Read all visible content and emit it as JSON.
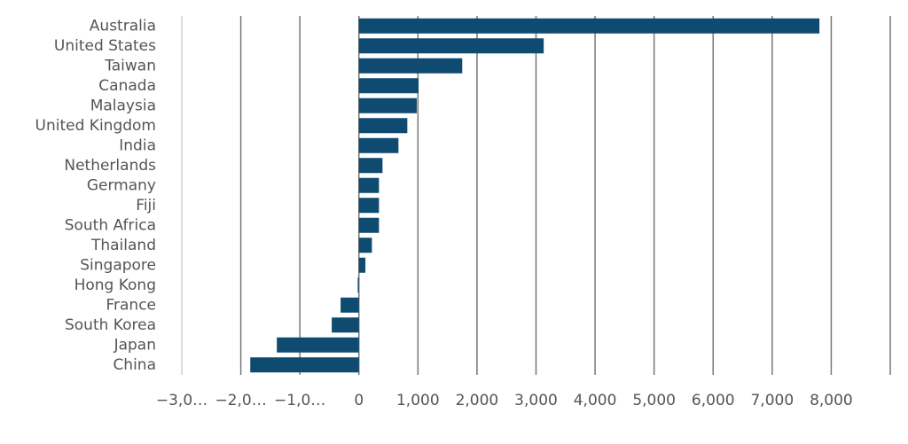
{
  "chart_data": {
    "type": "bar",
    "orientation": "horizontal",
    "categories": [
      "Australia",
      "United States",
      "Taiwan",
      "Canada",
      "Malaysia",
      "United Kingdom",
      "India",
      "Netherlands",
      "Germany",
      "Fiji",
      "South Africa",
      "Thailand",
      "Singapore",
      "Hong Kong",
      "France",
      "South Korea",
      "Japan",
      "China"
    ],
    "values": [
      7800,
      3130,
      1750,
      1010,
      980,
      820,
      670,
      400,
      340,
      340,
      340,
      220,
      110,
      -20,
      -310,
      -460,
      -1390,
      -1840
    ],
    "color": "#0f4a70",
    "xlim": [
      -3000,
      9000
    ],
    "xticks": [
      {
        "value": -3000,
        "label": "−3,0…"
      },
      {
        "value": -2000,
        "label": "−2,0…"
      },
      {
        "value": -1000,
        "label": "−1,0…"
      },
      0,
      {
        "value": 1000,
        "label": "1,000"
      },
      {
        "value": 2000,
        "label": "2,000"
      },
      {
        "value": 3000,
        "label": "3,000"
      },
      {
        "value": 4000,
        "label": "4,000"
      },
      {
        "value": 5000,
        "label": "5,000"
      },
      {
        "value": 6000,
        "label": "6,000"
      },
      {
        "value": 7000,
        "label": "7,000"
      },
      {
        "value": 8000,
        "label": "8,000"
      }
    ],
    "grid": true
  }
}
